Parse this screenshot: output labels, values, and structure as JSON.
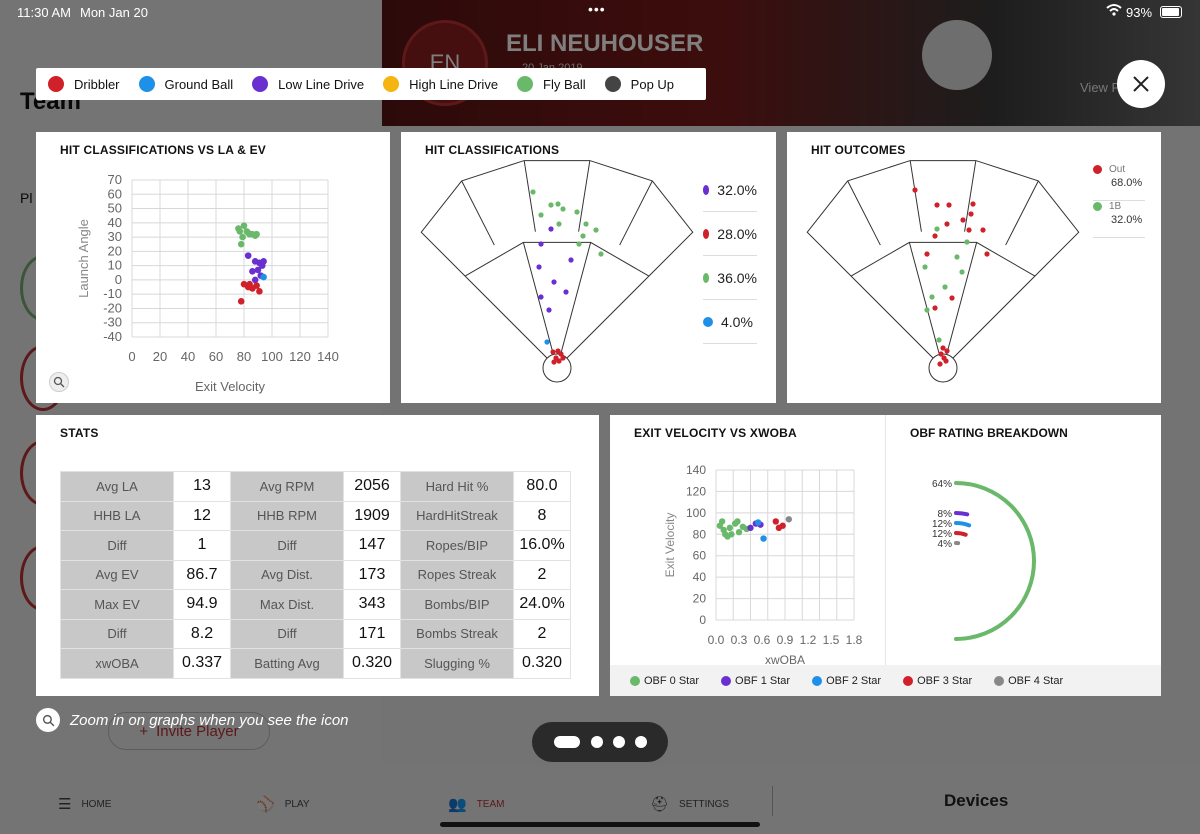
{
  "status_bar": {
    "time": "11:30 AM",
    "date": "Mon Jan 20",
    "battery": "93%"
  },
  "background": {
    "page_title": "Team",
    "player_name": "ELI NEUHOUSER",
    "initials": "EN",
    "subtitle": "20 Jan 2019",
    "view_label": "View P",
    "tab_partial": "Pl",
    "invite_label": "Invite Player"
  },
  "legend": [
    {
      "label": "Dribbler",
      "color": "#d0202a"
    },
    {
      "label": "Ground Ball",
      "color": "#1e90e8"
    },
    {
      "label": "Low Line Drive",
      "color": "#6a2fd0"
    },
    {
      "label": "High Line Drive",
      "color": "#f5b40f"
    },
    {
      "label": "Fly Ball",
      "color": "#6ab86a"
    },
    {
      "label": "Pop Up",
      "color": "#444444"
    }
  ],
  "panels": {
    "la_ev": {
      "title": "HIT CLASSIFICATIONS VS LA & EV",
      "zoom_icon": "magnify-icon"
    },
    "classifications": {
      "title": "HIT CLASSIFICATIONS",
      "items": [
        {
          "pct": "32.0%",
          "color": "#6a2fd0"
        },
        {
          "pct": "28.0%",
          "color": "#d0202a"
        },
        {
          "pct": "36.0%",
          "color": "#6ab86a"
        },
        {
          "pct": "4.0%",
          "color": "#1e90e8"
        }
      ]
    },
    "outcomes": {
      "title": "HIT OUTCOMES",
      "items": [
        {
          "label": "Out",
          "pct": "68.0%",
          "color": "#d0202a"
        },
        {
          "label": "1B",
          "pct": "32.0%",
          "color": "#6ab86a"
        }
      ]
    },
    "stats": {
      "title": "STATS"
    },
    "ev_xwoba": {
      "title": "EXIT VELOCITY VS XWOBA"
    },
    "obf": {
      "title": "OBF RATING BREAKDOWN",
      "rings": [
        {
          "pct": "64%",
          "color": "#6ab86a"
        },
        {
          "pct": "8%",
          "color": "#6a2fd0"
        },
        {
          "pct": "12%",
          "color": "#1e90e8"
        },
        {
          "pct": "12%",
          "color": "#d0202a"
        },
        {
          "pct": "4%",
          "color": "#888888"
        }
      ]
    }
  },
  "obf_legend": [
    {
      "label": "OBF 0 Star",
      "color": "#6ab86a"
    },
    {
      "label": "OBF 1 Star",
      "color": "#6a2fd0"
    },
    {
      "label": "OBF 2 Star",
      "color": "#1e90e8"
    },
    {
      "label": "OBF 3 Star",
      "color": "#d0202a"
    },
    {
      "label": "OBF 4 Star",
      "color": "#888888"
    }
  ],
  "stats_rows": [
    [
      {
        "l": "Avg LA",
        "v": "13"
      },
      {
        "l": "Avg RPM",
        "v": "2056"
      },
      {
        "l": "Hard Hit %",
        "v": "80.0"
      }
    ],
    [
      {
        "l": "HHB LA",
        "v": "12"
      },
      {
        "l": "HHB RPM",
        "v": "1909"
      },
      {
        "l": "HardHitStreak",
        "v": "8"
      }
    ],
    [
      {
        "l": "Diff",
        "v": "1"
      },
      {
        "l": "Diff",
        "v": "147"
      },
      {
        "l": "Ropes/BIP",
        "v": "16.0%"
      }
    ],
    [
      {
        "l": "Avg EV",
        "v": "86.7",
        "hl": true
      },
      {
        "l": "Avg Dist.",
        "v": "173",
        "hl": true
      },
      {
        "l": "Ropes Streak",
        "v": "2"
      }
    ],
    [
      {
        "l": "Max EV",
        "v": "94.9",
        "hl": true
      },
      {
        "l": "Max Dist.",
        "v": "343",
        "hl": true
      },
      {
        "l": "Bombs/BIP",
        "v": "24.0%"
      }
    ],
    [
      {
        "l": "Diff",
        "v": "8.2",
        "hl": true
      },
      {
        "l": "Diff",
        "v": "171"
      },
      {
        "l": "Bombs Streak",
        "v": "2"
      }
    ],
    [
      {
        "l": "xwOBA",
        "v": "0.337"
      },
      {
        "l": "Batting Avg",
        "v": "0.320"
      },
      {
        "l": "Slugging %",
        "v": "0.320"
      }
    ]
  ],
  "hint": "Zoom in on graphs when you see the icon",
  "tabs": [
    {
      "label": "HOME",
      "icon": "home-list-icon"
    },
    {
      "label": "PLAY",
      "icon": "baseball-icon"
    },
    {
      "label": "TEAM",
      "icon": "team-icon"
    },
    {
      "label": "SETTINGS",
      "icon": "helmet-icon"
    }
  ],
  "devices_label": "Devices",
  "chart_data": [
    {
      "type": "scatter",
      "title": "HIT CLASSIFICATIONS VS LA & EV",
      "xlabel": "Exit Velocity",
      "ylabel": "Launch Angle",
      "xlim": [
        0,
        140
      ],
      "ylim": [
        -40,
        70
      ],
      "x_ticks": [
        "0",
        "20",
        "40",
        "60",
        "80",
        "100",
        "120",
        "140"
      ],
      "y_ticks": [
        "70",
        "60",
        "50",
        "40",
        "30",
        "20",
        "10",
        "0",
        "-10",
        "-20",
        "-30",
        "-40"
      ],
      "series": [
        {
          "name": "Fly Ball",
          "color": "#6ab86a",
          "points": [
            [
              76,
              36
            ],
            [
              80,
              38
            ],
            [
              83,
              33
            ],
            [
              86,
              32
            ],
            [
              88,
              31
            ],
            [
              89,
              32
            ],
            [
              79,
              30
            ],
            [
              82,
              34
            ],
            [
              78,
              25
            ],
            [
              84,
              32
            ],
            [
              77,
              34
            ]
          ]
        },
        {
          "name": "Low Line Drive",
          "color": "#6a2fd0",
          "points": [
            [
              88,
              13
            ],
            [
              91,
              12
            ],
            [
              93,
              10
            ],
            [
              90,
              7
            ],
            [
              86,
              6
            ],
            [
              92,
              3
            ],
            [
              88,
              0
            ],
            [
              83,
              17
            ],
            [
              94,
              13
            ]
          ]
        },
        {
          "name": "Ground Ball",
          "color": "#1e90e8",
          "points": [
            [
              94,
              2
            ]
          ]
        },
        {
          "name": "Dribbler",
          "color": "#d0202a",
          "points": [
            [
              78,
              -15
            ],
            [
              83,
              -5
            ],
            [
              86,
              -6
            ],
            [
              89,
              -4
            ],
            [
              91,
              -8
            ],
            [
              84,
              -3
            ],
            [
              80,
              -3
            ]
          ]
        }
      ]
    },
    {
      "type": "scatter",
      "title": "EXIT VELOCITY VS XWOBA",
      "xlabel": "xwOBA",
      "ylabel": "Exit Velocity",
      "xlim": [
        0,
        1.8
      ],
      "ylim": [
        0,
        140
      ],
      "x_ticks": [
        "0.0",
        "0.3",
        "0.6",
        "0.9",
        "1.2",
        "1.5",
        "1.8"
      ],
      "y_ticks": [
        "140",
        "120",
        "100",
        "80",
        "60",
        "40",
        "20",
        "0"
      ],
      "series": [
        {
          "name": "OBF 0 Star",
          "color": "#6ab86a",
          "points": [
            [
              0.05,
              88
            ],
            [
              0.1,
              84
            ],
            [
              0.12,
              80
            ],
            [
              0.18,
              86
            ],
            [
              0.25,
              90
            ],
            [
              0.3,
              82
            ],
            [
              0.35,
              87
            ],
            [
              0.4,
              85
            ],
            [
              0.15,
              78
            ],
            [
              0.28,
              92
            ],
            [
              0.08,
              92
            ],
            [
              0.2,
              80
            ]
          ]
        },
        {
          "name": "OBF 1 Star",
          "color": "#6a2fd0",
          "points": [
            [
              0.45,
              86
            ],
            [
              0.52,
              90
            ],
            [
              0.58,
              89
            ]
          ]
        },
        {
          "name": "OBF 2 Star",
          "color": "#1e90e8",
          "points": [
            [
              0.62,
              76
            ],
            [
              0.55,
              91
            ]
          ]
        },
        {
          "name": "OBF 3 Star",
          "color": "#d0202a",
          "points": [
            [
              0.78,
              92
            ],
            [
              0.82,
              86
            ],
            [
              0.87,
              88
            ]
          ]
        },
        {
          "name": "OBF 4 Star",
          "color": "#888888",
          "points": [
            [
              0.95,
              94
            ]
          ]
        }
      ]
    }
  ]
}
